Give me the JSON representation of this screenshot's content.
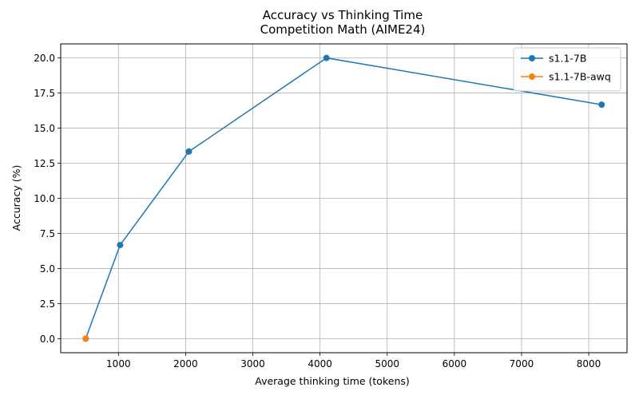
{
  "chart_data": {
    "type": "line",
    "title": "Accuracy vs Thinking Time",
    "subtitle": "Competition Math (AIME24)",
    "xlabel": "Average thinking time (tokens)",
    "ylabel": "Accuracy (%)",
    "xlim": [
      140,
      8570
    ],
    "ylim": [
      -1.0,
      21.0
    ],
    "xticks": [
      1000,
      2000,
      3000,
      4000,
      5000,
      6000,
      7000,
      8000
    ],
    "yticks": [
      0.0,
      2.5,
      5.0,
      7.5,
      10.0,
      12.5,
      15.0,
      17.5,
      20.0
    ],
    "xtick_labels": [
      "1000",
      "2000",
      "3000",
      "4000",
      "5000",
      "6000",
      "7000",
      "8000"
    ],
    "ytick_labels": [
      "0.0",
      "2.5",
      "5.0",
      "7.5",
      "10.0",
      "12.5",
      "15.0",
      "17.5",
      "20.0"
    ],
    "grid": true,
    "legend_position": "top-right",
    "series": [
      {
        "name": "s1.1-7B",
        "color": "#1f77b4",
        "x": [
          512,
          1024,
          2048,
          4096,
          8192
        ],
        "y": [
          0.0,
          6.67,
          13.33,
          20.0,
          16.67
        ]
      },
      {
        "name": "s1.1-7B-awq",
        "color": "#ff7f0e",
        "x": [
          512
        ],
        "y": [
          0.0
        ]
      }
    ]
  }
}
